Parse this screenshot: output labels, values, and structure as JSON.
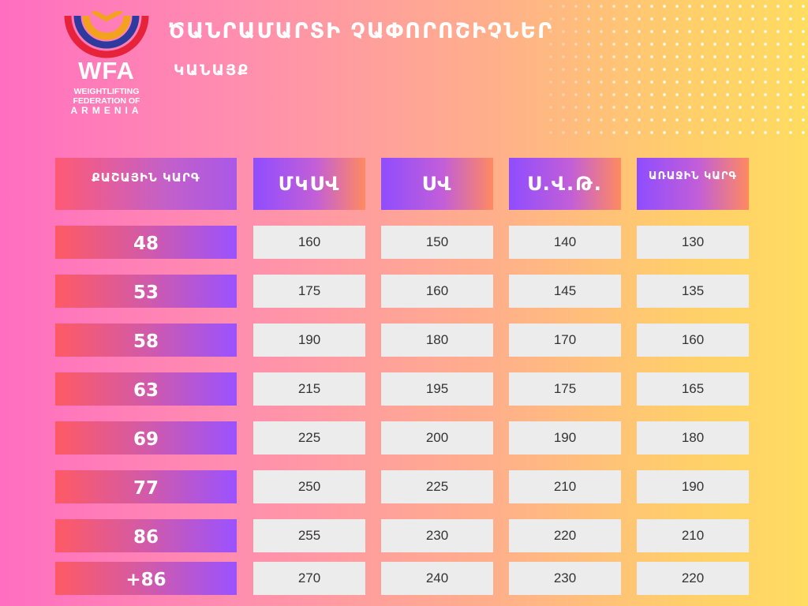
{
  "header": {
    "title": "ԾԱՆՐԱՄԱՐՏԻ ՉԱՓՈՐՈՇԻՉՆԵՐ",
    "subtitle": "ԿԱՆԱՅՔ"
  },
  "logo": {
    "abbr": "WFA",
    "line1": "WEIGHTLIFTING",
    "line2": "FEDERATION OF",
    "line3": "ARMENIA",
    "colors": {
      "red": "#e7223b",
      "blue": "#2f3a9e",
      "orange": "#f2a21d"
    }
  },
  "table": {
    "first_header": "ՔԱՇԱՅԻՆ ԿԱՐԳ",
    "columns": [
      "ՄԿՍՎ",
      "ՍՎ",
      "Ս.Վ.Թ.",
      "ԱՌԱՋԻՆ ԿԱՐԳ"
    ],
    "rows": [
      {
        "category": "48",
        "values": [
          "160",
          "150",
          "140",
          "130"
        ]
      },
      {
        "category": "53",
        "values": [
          "175",
          "160",
          "145",
          "135"
        ]
      },
      {
        "category": "58",
        "values": [
          "190",
          "180",
          "170",
          "160"
        ]
      },
      {
        "category": "63",
        "values": [
          "215",
          "195",
          "175",
          "165"
        ]
      },
      {
        "category": "69",
        "values": [
          "225",
          "200",
          "190",
          "180"
        ]
      },
      {
        "category": "77",
        "values": [
          "250",
          "225",
          "210",
          "190"
        ]
      },
      {
        "category": "86",
        "values": [
          "255",
          "230",
          "220",
          "210"
        ]
      },
      {
        "category": "+86",
        "values": [
          "270",
          "240",
          "230",
          "220"
        ]
      }
    ]
  }
}
